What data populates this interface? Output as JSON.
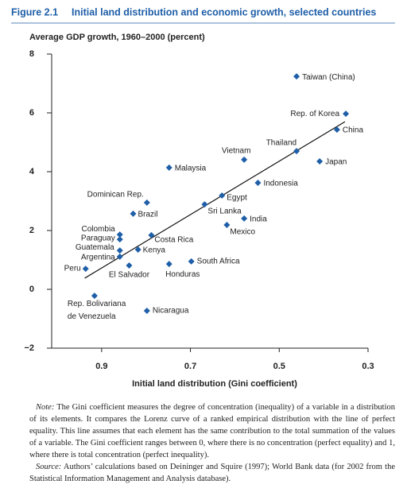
{
  "chart_data": {
    "type": "scatter",
    "figure_label": "Figure 2.1",
    "title": "Initial land distribution and economic growth, selected countries",
    "y_label": "Average GDP growth, 1960–2000 (percent)",
    "x_label": "Initial land distribution (Gini coefficient)",
    "color": "#1f5fa8",
    "names": [
      "Taiwan (China)",
      "Rep. of Korea",
      "China",
      "Thailand",
      "Vietnam",
      "Japan",
      "Malaysia",
      "Indonesia",
      "Egypt",
      "Dominican Rep.",
      "Sri Lanka",
      "Brazil",
      "India",
      "Mexico",
      "Colombia",
      "Costa Rica",
      "Paraguay",
      "Guatemala",
      "Kenya",
      "Argentina",
      "South Africa",
      "Honduras",
      "El Salvador",
      "Peru",
      "Rep. Bolivariana de Venezuela",
      "Nicaragua"
    ],
    "x": [
      0.461,
      0.35,
      0.37,
      0.461,
      0.579,
      0.409,
      0.748,
      0.548,
      0.629,
      0.798,
      0.668,
      0.829,
      0.579,
      0.618,
      0.859,
      0.788,
      0.859,
      0.859,
      0.818,
      0.859,
      0.698,
      0.748,
      0.838,
      0.936,
      0.916,
      0.798
    ],
    "y": [
      7.24,
      5.97,
      5.43,
      4.7,
      4.41,
      4.35,
      4.14,
      3.62,
      3.19,
      2.95,
      2.89,
      2.57,
      2.41,
      2.19,
      1.86,
      1.84,
      1.7,
      1.32,
      1.35,
      1.11,
      0.95,
      0.86,
      0.81,
      0.7,
      -0.22,
      -0.73
    ],
    "trendline": {
      "x": [
        0.938,
        0.352
      ],
      "y": [
        0.38,
        5.7
      ]
    },
    "xlim": [
      1.0125,
      0.3
    ],
    "xticks": [
      0.9,
      0.7,
      0.5,
      0.3
    ],
    "ylim": [
      -2,
      8
    ],
    "yticks": [
      {
        "value": -2,
        "label": "−2"
      },
      0,
      2,
      4,
      6,
      8
    ]
  },
  "notes": {
    "note_label": "Note:",
    "note": "The Gini coefficient measures the degree of concentration (inequality) of a variable in a distribution of its elements. It compares the Lorenz curve of a ranked empirical distribution with the line of perfect equality. This line assumes that each element has the same contribution to the total summation of the values of a variable. The Gini coefficient ranges between 0, where there is no concentration (perfect equality) and 1, where there is total concentration (perfect inequality).",
    "source_label": "Source:",
    "source": "Authors’ calculations based on Deininger and Squire (1997); World Bank data (for 2002 from the Statistical Information Management and Analysis database)."
  }
}
